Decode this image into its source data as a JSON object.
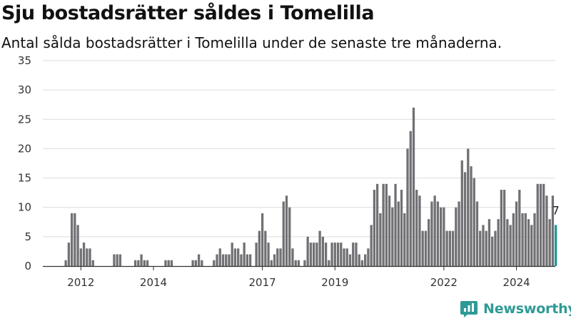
{
  "header": {
    "title": "Sju bostadsrätter såldes i Tomelilla",
    "subtitle": "Antal sålda bostadsrätter i Tomelilla under de senaste tre månaderna."
  },
  "brand": {
    "name": "Newsworthy",
    "icon": "newsworthy-logo-icon",
    "color": "#2f9a95"
  },
  "chart_data": {
    "type": "bar",
    "title": "Sju bostadsrätter såldes i Tomelilla",
    "subtitle": "Antal sålda bostadsrätter i Tomelilla under de senaste tre månaderna.",
    "xlabel": "",
    "ylabel": "",
    "ylim": [
      0,
      35
    ],
    "yticks": [
      0,
      5,
      10,
      15,
      20,
      25,
      30,
      35
    ],
    "grid": true,
    "x_ticks": [
      {
        "label": "2012",
        "index": 5
      },
      {
        "label": "2014",
        "index": 29
      },
      {
        "label": "2017",
        "index": 65
      },
      {
        "label": "2019",
        "index": 89
      },
      {
        "label": "2022",
        "index": 125
      },
      {
        "label": "2024",
        "index": 149
      }
    ],
    "series": [
      {
        "values": [
          1,
          4,
          9,
          9,
          7,
          3,
          4,
          3,
          3,
          1,
          0,
          0,
          0,
          0,
          0,
          0,
          2,
          2,
          2,
          0,
          0,
          0,
          0,
          1,
          1,
          2,
          1,
          1,
          0,
          0,
          0,
          0,
          0,
          1,
          1,
          1,
          0,
          0,
          0,
          0,
          0,
          0,
          1,
          1,
          2,
          1,
          0,
          0,
          0,
          1,
          2,
          3,
          2,
          2,
          2,
          4,
          3,
          3,
          2,
          4,
          2,
          2,
          0,
          4,
          6,
          9,
          6,
          4,
          1,
          2,
          3,
          3,
          11,
          12,
          10,
          3,
          1,
          1,
          0,
          1,
          5,
          4,
          4,
          4,
          6,
          5,
          4,
          1,
          4,
          4,
          4,
          4,
          3,
          3,
          2,
          4,
          4,
          2,
          1,
          2,
          3,
          7,
          13,
          14,
          9,
          14,
          14,
          12,
          10,
          14,
          11,
          13,
          9,
          20,
          23,
          27,
          13,
          12,
          6,
          6,
          8,
          11,
          12,
          11,
          10,
          10,
          6,
          6,
          6,
          10,
          11,
          18,
          16,
          20,
          17,
          15,
          11,
          6,
          7,
          6,
          8,
          5,
          6,
          8,
          13,
          13,
          8,
          7,
          9,
          11,
          13,
          9,
          9,
          8,
          7,
          9,
          14,
          14,
          14,
          12,
          8,
          12,
          7
        ],
        "colors": {
          "bar": "#717074",
          "highlight": "#1d9a93"
        }
      }
    ],
    "highlight": {
      "index": 162,
      "value": 7,
      "label": "7"
    }
  }
}
